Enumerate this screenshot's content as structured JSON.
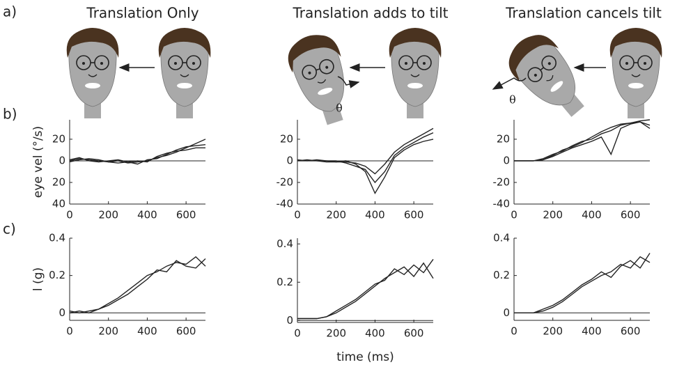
{
  "panel_labels": [
    "a)",
    "b)",
    "c)"
  ],
  "columns": [
    {
      "title": "Translation Only"
    },
    {
      "title": "Translation adds to tilt"
    },
    {
      "title": "Translation cancels tilt"
    }
  ],
  "theta": "θ",
  "chart_data": [
    {
      "type": "line",
      "ylabel": "eye vel (°/s)",
      "x": [
        0,
        50,
        100,
        150,
        200,
        250,
        300,
        350,
        400,
        450,
        500,
        550,
        600,
        650,
        700
      ],
      "xlim": [
        0,
        700
      ],
      "xticks": [
        0,
        200,
        400,
        600
      ],
      "ylim": [
        -40,
        38
      ],
      "yticks": [
        {
          "value": -40,
          "label": "40"
        },
        {
          "value": -20,
          "label": "20"
        },
        0,
        20
      ],
      "series": [
        {
          "color": "#222222",
          "values": [
            0,
            2,
            1,
            0,
            -1,
            0,
            -2,
            -1,
            0,
            3,
            5,
            8,
            12,
            16,
            20
          ]
        },
        {
          "color": "#222222",
          "values": [
            1,
            3,
            0,
            -1,
            0,
            1,
            -1,
            -3,
            1,
            2,
            6,
            10,
            13,
            14,
            15
          ]
        },
        {
          "color": "#222222",
          "values": [
            -1,
            1,
            2,
            1,
            -1,
            -2,
            -1,
            0,
            -1,
            4,
            7,
            9,
            10,
            12,
            12
          ]
        }
      ]
    },
    {
      "type": "line",
      "x": [
        0,
        50,
        100,
        150,
        200,
        250,
        300,
        350,
        400,
        450,
        500,
        550,
        600,
        650,
        700
      ],
      "xlim": [
        0,
        700
      ],
      "xticks": [
        0,
        200,
        400,
        600
      ],
      "ylim": [
        -40,
        38
      ],
      "yticks": [
        -40,
        -20,
        0,
        20
      ],
      "series": [
        {
          "color": "#222222",
          "values": [
            0,
            0,
            1,
            0,
            -1,
            0,
            -3,
            -10,
            -30,
            -15,
            3,
            10,
            15,
            18,
            20
          ]
        },
        {
          "color": "#222222",
          "values": [
            0,
            1,
            0,
            0,
            0,
            -2,
            -5,
            -8,
            -20,
            -10,
            5,
            12,
            17,
            22,
            26
          ]
        },
        {
          "color": "#222222",
          "values": [
            1,
            0,
            0,
            -1,
            -1,
            -1,
            -2,
            -5,
            -12,
            -3,
            8,
            15,
            20,
            25,
            30
          ]
        }
      ]
    },
    {
      "type": "line",
      "x": [
        0,
        50,
        100,
        150,
        200,
        250,
        300,
        350,
        400,
        450,
        500,
        550,
        600,
        650,
        700
      ],
      "xlim": [
        0,
        700
      ],
      "xticks": [
        0,
        200,
        400,
        600
      ],
      "ylim": [
        -40,
        38
      ],
      "yticks": [
        -40,
        -20,
        0,
        20
      ],
      "series": [
        {
          "color": "#222222",
          "values": [
            0,
            0,
            0,
            1,
            5,
            10,
            13,
            17,
            22,
            27,
            31,
            34,
            35,
            37,
            38
          ]
        },
        {
          "color": "#222222",
          "values": [
            0,
            0,
            0,
            2,
            6,
            9,
            14,
            18,
            20,
            25,
            28,
            33,
            35,
            36,
            33
          ]
        },
        {
          "color": "#222222",
          "values": [
            0,
            0,
            0,
            1,
            4,
            8,
            12,
            15,
            18,
            22,
            6,
            30,
            34,
            36,
            30
          ]
        }
      ]
    },
    {
      "type": "line",
      "ylabel": "l (g)",
      "x": [
        0,
        50,
        100,
        150,
        200,
        250,
        300,
        350,
        400,
        450,
        500,
        550,
        600,
        650,
        700
      ],
      "xlim": [
        0,
        700
      ],
      "xticks": [
        0,
        200,
        400,
        600
      ],
      "ylim": [
        -0.04,
        0.4
      ],
      "yticks": [
        0,
        0.2,
        0.4
      ],
      "series": [
        {
          "color": "#222222",
          "values": [
            0.01,
            0.0,
            0.01,
            0.02,
            0.05,
            0.08,
            0.12,
            0.16,
            0.2,
            0.22,
            0.25,
            0.27,
            0.26,
            0.3,
            0.25
          ]
        },
        {
          "color": "#222222",
          "values": [
            0.0,
            0.01,
            0.0,
            0.02,
            0.04,
            0.07,
            0.1,
            0.14,
            0.18,
            0.23,
            0.22,
            0.28,
            0.25,
            0.24,
            0.29
          ]
        }
      ]
    },
    {
      "type": "line",
      "xlabel": "time (ms)",
      "x": [
        0,
        50,
        100,
        150,
        200,
        250,
        300,
        350,
        400,
        450,
        500,
        550,
        600,
        650,
        700
      ],
      "xlim": [
        0,
        700
      ],
      "xticks": [
        0,
        200,
        400,
        600
      ],
      "ylim": [
        -0.01,
        0.43
      ],
      "yticks": [
        0,
        0.2,
        0.4
      ],
      "series": [
        {
          "color": "#222222",
          "values": [
            0.01,
            0.01,
            0.01,
            0.02,
            0.04,
            0.07,
            0.1,
            0.14,
            0.18,
            0.22,
            0.25,
            0.28,
            0.23,
            0.3,
            0.22
          ]
        },
        {
          "color": "#222222",
          "values": [
            0.01,
            0.01,
            0.01,
            0.02,
            0.05,
            0.08,
            0.11,
            0.15,
            0.19,
            0.21,
            0.27,
            0.24,
            0.29,
            0.25,
            0.32
          ]
        }
      ]
    },
    {
      "type": "line",
      "x": [
        0,
        50,
        100,
        150,
        200,
        250,
        300,
        350,
        400,
        450,
        500,
        550,
        600,
        650,
        700
      ],
      "xlim": [
        0,
        700
      ],
      "xticks": [
        0,
        200,
        400,
        600
      ],
      "ylim": [
        -0.04,
        0.4
      ],
      "yticks": [
        0,
        0.2,
        0.4
      ],
      "series": [
        {
          "color": "#222222",
          "values": [
            0.0,
            0.0,
            0.0,
            0.01,
            0.03,
            0.06,
            0.1,
            0.14,
            0.17,
            0.2,
            0.22,
            0.26,
            0.24,
            0.3,
            0.27
          ]
        },
        {
          "color": "#222222",
          "values": [
            0.0,
            0.0,
            0.0,
            0.02,
            0.04,
            0.07,
            0.11,
            0.15,
            0.18,
            0.22,
            0.19,
            0.25,
            0.28,
            0.24,
            0.32
          ]
        }
      ]
    }
  ]
}
